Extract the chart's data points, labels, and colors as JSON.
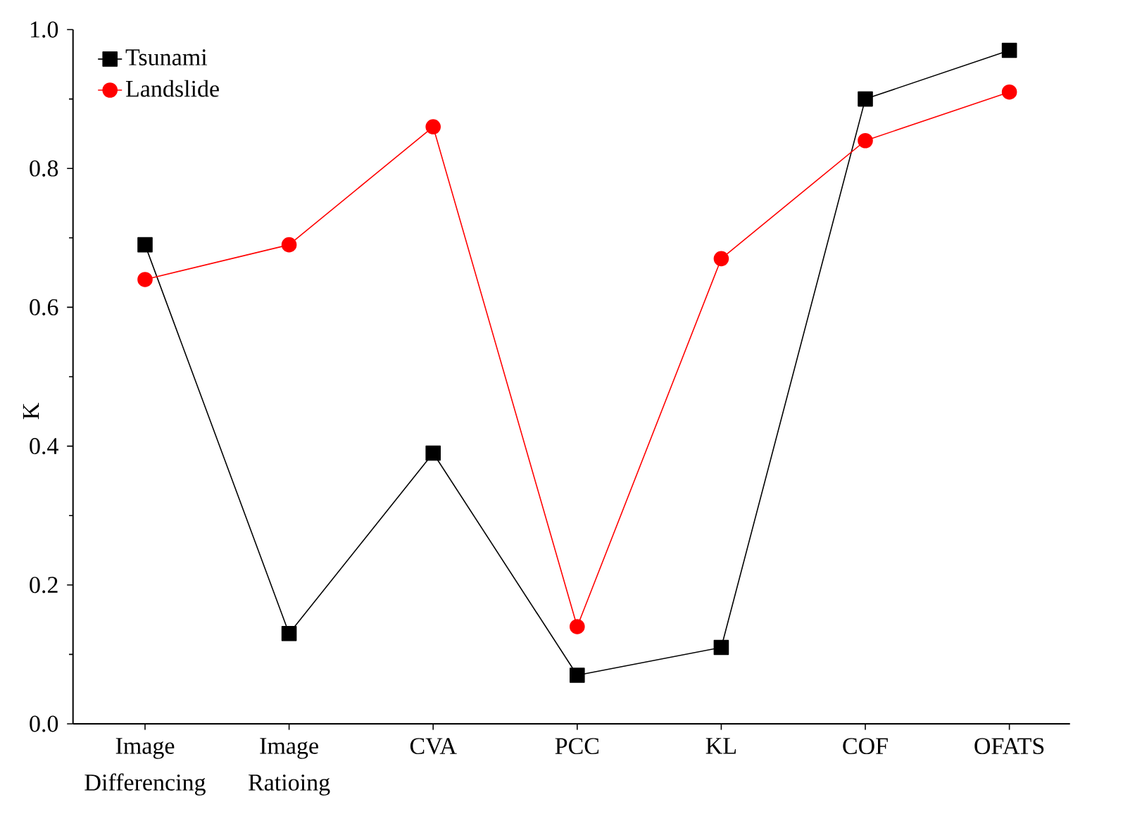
{
  "chart_data": {
    "type": "line",
    "ylabel": "K",
    "categories": [
      "Image Differencing",
      "Image Ratioing",
      "CVA",
      "PCC",
      "KL",
      "COF",
      "OFATS"
    ],
    "series": [
      {
        "name": "Tsunami",
        "color": "#000000",
        "marker": "square",
        "values": [
          0.69,
          0.13,
          0.39,
          0.07,
          0.11,
          0.9,
          0.97
        ]
      },
      {
        "name": "Landslide",
        "color": "#ff0000",
        "marker": "circle",
        "values": [
          0.64,
          0.69,
          0.86,
          0.14,
          0.67,
          0.84,
          0.91
        ]
      }
    ],
    "ylim": [
      0,
      1.0
    ],
    "yticks": [
      {
        "value": 0,
        "label": "0.0"
      },
      {
        "value": 0.2,
        "label": "0.2"
      },
      {
        "value": 0.4,
        "label": "0.4"
      },
      {
        "value": 0.6,
        "label": "0.6"
      },
      {
        "value": 0.8,
        "label": "0.8"
      },
      {
        "value": 1.0,
        "label": "1.0"
      }
    ],
    "legend": "top left"
  }
}
